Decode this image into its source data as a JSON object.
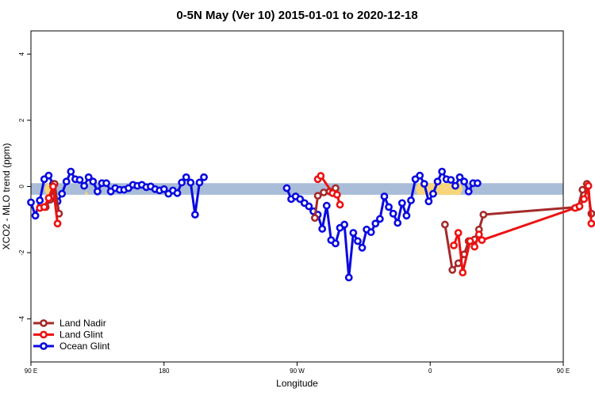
{
  "chart_data": {
    "type": "line",
    "title": "0-5N May (Ver 10)   2015-01-01 to 2020-12-18",
    "xlabel": "Longitude",
    "ylabel": "XCO2 - MLO trend (ppm)",
    "xlim": [
      90,
      450
    ],
    "ylim": [
      -5.3,
      4.7
    ],
    "x_ticks": [
      {
        "value": 90,
        "label": "90 E"
      },
      {
        "value": 180,
        "label": "180"
      },
      {
        "value": 270,
        "label": "90 W"
      },
      {
        "value": 360,
        "label": "0"
      },
      {
        "value": 450,
        "label": "90 E"
      },
      {
        "value": 540,
        "label": "180"
      }
    ],
    "y_ticks": [
      -4,
      -2,
      0,
      2,
      4
    ],
    "surface_band": {
      "y_range": [
        -0.25,
        0.1
      ],
      "ocean_color": "#a9bcd8",
      "land_color": "#f7d57a",
      "land_segments": [
        [
          99,
          104
        ],
        [
          127,
          128
        ],
        [
          350,
          382
        ],
        [
          462,
          464
        ],
        [
          472,
          476
        ]
      ]
    },
    "legend_position": "bottom-left",
    "series": [
      {
        "name": "Land Nadir",
        "color": "#a52a2a",
        "points": [
          [
            100,
            -0.62
          ],
          [
            103,
            -0.4
          ],
          [
            106,
            0.08
          ],
          [
            109,
            -0.82
          ],
          [
            282,
            -0.95
          ],
          [
            284,
            -0.28
          ],
          [
            288,
            -0.18
          ],
          [
            292,
            -0.15
          ],
          [
            296,
            -0.05
          ],
          [
            370,
            -1.15
          ],
          [
            375,
            -2.52
          ],
          [
            379,
            -2.32
          ],
          [
            383,
            -2.05
          ],
          [
            386,
            -1.65
          ],
          [
            390,
            -1.6
          ],
          [
            393,
            -1.3
          ],
          [
            396,
            -0.85
          ],
          [
            460,
            -0.62
          ],
          [
            463,
            -0.1
          ],
          [
            466,
            0.08
          ],
          [
            469,
            -0.82
          ]
        ],
        "breaks": [
          109,
          296
        ]
      },
      {
        "name": "Land Glint",
        "color": "#ee1111",
        "points": [
          [
            96,
            -0.65
          ],
          [
            99,
            -0.62
          ],
          [
            102,
            -0.35
          ],
          [
            105,
            0.0
          ],
          [
            108,
            -1.12
          ],
          [
            284,
            0.22
          ],
          [
            286,
            0.32
          ],
          [
            294,
            -0.2
          ],
          [
            297,
            -0.25
          ],
          [
            299,
            -0.55
          ],
          [
            376,
            -1.78
          ],
          [
            379,
            -1.4
          ],
          [
            382,
            -2.6
          ],
          [
            387,
            -1.65
          ],
          [
            390,
            -1.82
          ],
          [
            393,
            -1.45
          ],
          [
            395,
            -1.62
          ],
          [
            458,
            -0.65
          ],
          [
            461,
            -0.6
          ],
          [
            464,
            -0.38
          ],
          [
            467,
            0.02
          ],
          [
            469,
            -1.12
          ]
        ],
        "breaks": [
          108,
          299
        ]
      },
      {
        "name": "Ocean Glint",
        "color": "#0a0ae0",
        "points": [
          [
            90,
            -0.48
          ],
          [
            93,
            -0.88
          ],
          [
            96,
            -0.42
          ],
          [
            99,
            0.22
          ],
          [
            102,
            0.33
          ],
          [
            105,
            0.08
          ],
          [
            108,
            -0.45
          ],
          [
            111,
            -0.22
          ],
          [
            114,
            0.15
          ],
          [
            117,
            0.45
          ],
          [
            120,
            0.22
          ],
          [
            123,
            0.2
          ],
          [
            126,
            0.02
          ],
          [
            129,
            0.28
          ],
          [
            132,
            0.15
          ],
          [
            135,
            -0.15
          ],
          [
            138,
            0.1
          ],
          [
            141,
            0.1
          ],
          [
            144,
            -0.15
          ],
          [
            147,
            -0.05
          ],
          [
            150,
            -0.1
          ],
          [
            153,
            -0.1
          ],
          [
            156,
            -0.05
          ],
          [
            159,
            0.05
          ],
          [
            162,
            0.02
          ],
          [
            165,
            0.05
          ],
          [
            168,
            -0.02
          ],
          [
            171,
            0.0
          ],
          [
            174,
            -0.08
          ],
          [
            177,
            -0.12
          ],
          [
            180,
            -0.08
          ],
          [
            183,
            -0.22
          ],
          [
            186,
            -0.12
          ],
          [
            189,
            -0.2
          ],
          [
            192,
            0.12
          ],
          [
            195,
            0.28
          ],
          [
            198,
            0.12
          ],
          [
            201,
            -0.85
          ],
          [
            204,
            0.12
          ],
          [
            207,
            0.28
          ],
          [
            263,
            -0.05
          ],
          [
            266,
            -0.38
          ],
          [
            269,
            -0.3
          ],
          [
            272,
            -0.38
          ],
          [
            275,
            -0.5
          ],
          [
            278,
            -0.6
          ],
          [
            281,
            -0.75
          ],
          [
            284,
            -0.85
          ],
          [
            287,
            -1.28
          ],
          [
            290,
            -0.58
          ],
          [
            293,
            -1.62
          ],
          [
            296,
            -1.72
          ],
          [
            299,
            -1.25
          ],
          [
            302,
            -1.15
          ],
          [
            305,
            -2.75
          ],
          [
            308,
            -1.4
          ],
          [
            311,
            -1.65
          ],
          [
            314,
            -1.85
          ],
          [
            317,
            -1.3
          ],
          [
            320,
            -1.38
          ],
          [
            323,
            -1.12
          ],
          [
            326,
            -0.98
          ],
          [
            329,
            -0.3
          ],
          [
            332,
            -0.62
          ],
          [
            335,
            -0.82
          ],
          [
            338,
            -1.1
          ],
          [
            341,
            -0.5
          ],
          [
            344,
            -0.88
          ],
          [
            347,
            -0.42
          ],
          [
            350,
            0.22
          ],
          [
            353,
            0.33
          ],
          [
            356,
            0.08
          ],
          [
            359,
            -0.45
          ],
          [
            362,
            -0.22
          ],
          [
            365,
            0.15
          ],
          [
            368,
            0.45
          ],
          [
            371,
            0.22
          ],
          [
            374,
            0.2
          ],
          [
            377,
            0.02
          ],
          [
            380,
            0.28
          ],
          [
            383,
            0.15
          ],
          [
            386,
            -0.15
          ],
          [
            389,
            0.1
          ],
          [
            392,
            0.1
          ]
        ],
        "breaks": [
          207
        ]
      }
    ]
  }
}
